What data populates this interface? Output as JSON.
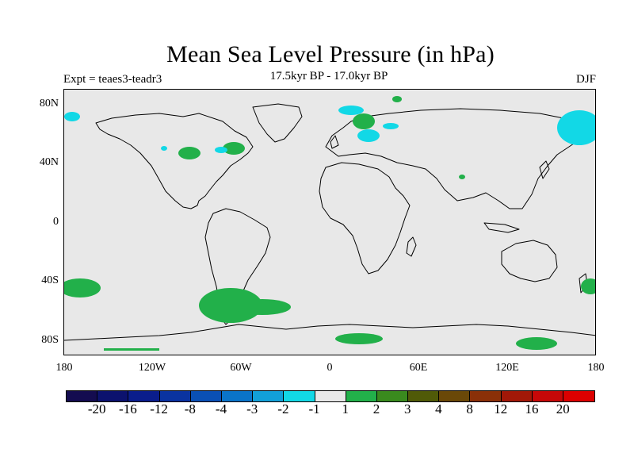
{
  "title": "Mean Sea Level Pressure (in hPa)",
  "subtitle_left": "Expt = teaes3-teadr3",
  "subtitle_center": "17.5kyr BP - 17.0kyr BP",
  "subtitle_right": "DJF",
  "lat_ticks": [
    "80N",
    "40N",
    "0",
    "40S",
    "80S"
  ],
  "lon_ticks": [
    "180",
    "120W",
    "60W",
    "0",
    "60E",
    "120E",
    "180"
  ],
  "colorbar": {
    "labels": [
      "-20",
      "-16",
      "-12",
      "-8",
      "-4",
      "-3",
      "-2",
      "-1",
      "1",
      "2",
      "3",
      "4",
      "8",
      "12",
      "16",
      "20"
    ],
    "colors": [
      "#140c50",
      "#0c126e",
      "#0a1d8c",
      "#0a33a0",
      "#0a50b4",
      "#0a74c8",
      "#12a0d8",
      "#12d8e6",
      "#e8e8e8",
      "#22b04a",
      "#3a8a1e",
      "#505a08",
      "#6a4808",
      "#8a3008",
      "#a21808",
      "#c60808",
      "#dc0000"
    ]
  },
  "colors": {
    "map_background": "#e8e8e8",
    "positive_anomaly": "#22b04a",
    "negative_anomaly": "#12d8e6"
  }
}
